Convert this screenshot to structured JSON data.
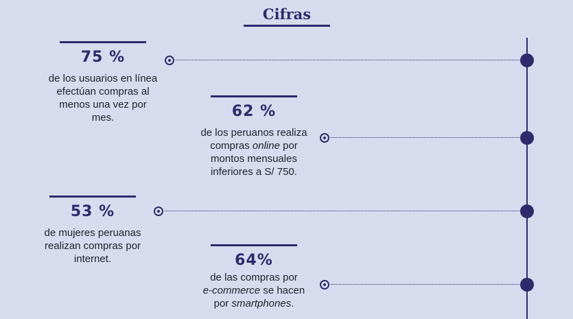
{
  "header": {
    "title": "Cifras"
  },
  "stats": [
    {
      "percent": "75 %",
      "lines": [
        {
          "t": "de los usuarios en línea"
        },
        {
          "t": "efectúan compras al"
        },
        {
          "t": "menos una vez por"
        },
        {
          "t": "mes."
        }
      ]
    },
    {
      "percent": "62 %",
      "line1": "de los peruanos realiza",
      "line2_pre": "compras ",
      "line2_em": "online",
      "line2_post": " por",
      "line3": "montos mensuales",
      "line4": "inferiores a S/ 750."
    },
    {
      "percent": "53 %",
      "lines": [
        {
          "t": "de mujeres peruanas"
        },
        {
          "t": "realizan compras por"
        },
        {
          "t": "internet."
        }
      ]
    },
    {
      "percent": "64%",
      "line1": "de las compras por",
      "line2_em": "e-commerce",
      "line2_post": " se hacen",
      "line3_pre": "por ",
      "line3_em": "smartphones",
      "line3_post": "."
    }
  ],
  "colors": {
    "accent": "#2e2a6b",
    "background": "#d6dcee",
    "text": "#1f1f2a"
  }
}
